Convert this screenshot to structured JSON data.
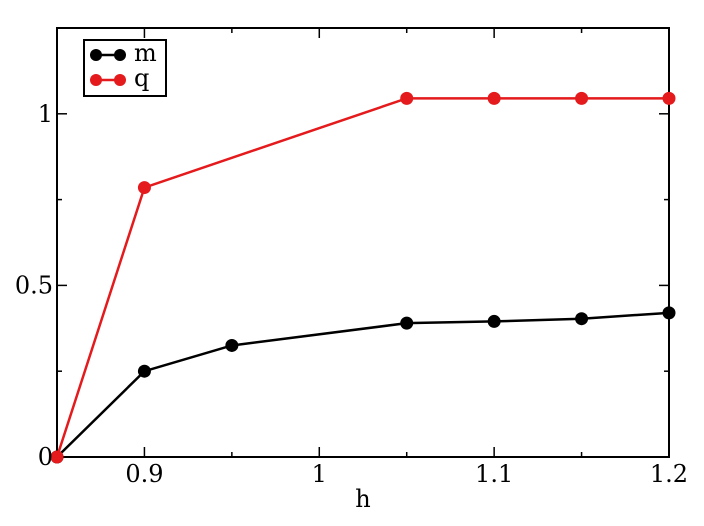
{
  "chart_data": {
    "type": "line",
    "xlabel": "h",
    "ylabel": "",
    "xlim": [
      0.85,
      1.2
    ],
    "ylim": [
      0,
      1.25
    ],
    "xticks": [
      {
        "value": 0.9,
        "label": "0.9"
      },
      {
        "value": 1.0,
        "label": "1"
      },
      {
        "value": 1.1,
        "label": "1.1"
      },
      {
        "value": 1.2,
        "label": "1.2"
      }
    ],
    "yticks": [
      {
        "value": 0,
        "label": "0"
      },
      {
        "value": 0.5,
        "label": "0.5"
      },
      {
        "value": 1,
        "label": "1"
      }
    ],
    "grid": false,
    "legend_position": "top-left",
    "series": [
      {
        "name": "m",
        "color": "#000000",
        "x": [
          0.85,
          0.9,
          0.95,
          1.05,
          1.1,
          1.15,
          1.2
        ],
        "y": [
          0.0,
          0.25,
          0.325,
          0.39,
          0.395,
          0.403,
          0.42
        ]
      },
      {
        "name": "q",
        "color": "#e41a1c",
        "x": [
          0.85,
          0.9,
          1.05,
          1.1,
          1.15,
          1.2
        ],
        "y": [
          0.0,
          0.785,
          1.045,
          1.045,
          1.045,
          1.045
        ]
      }
    ]
  }
}
